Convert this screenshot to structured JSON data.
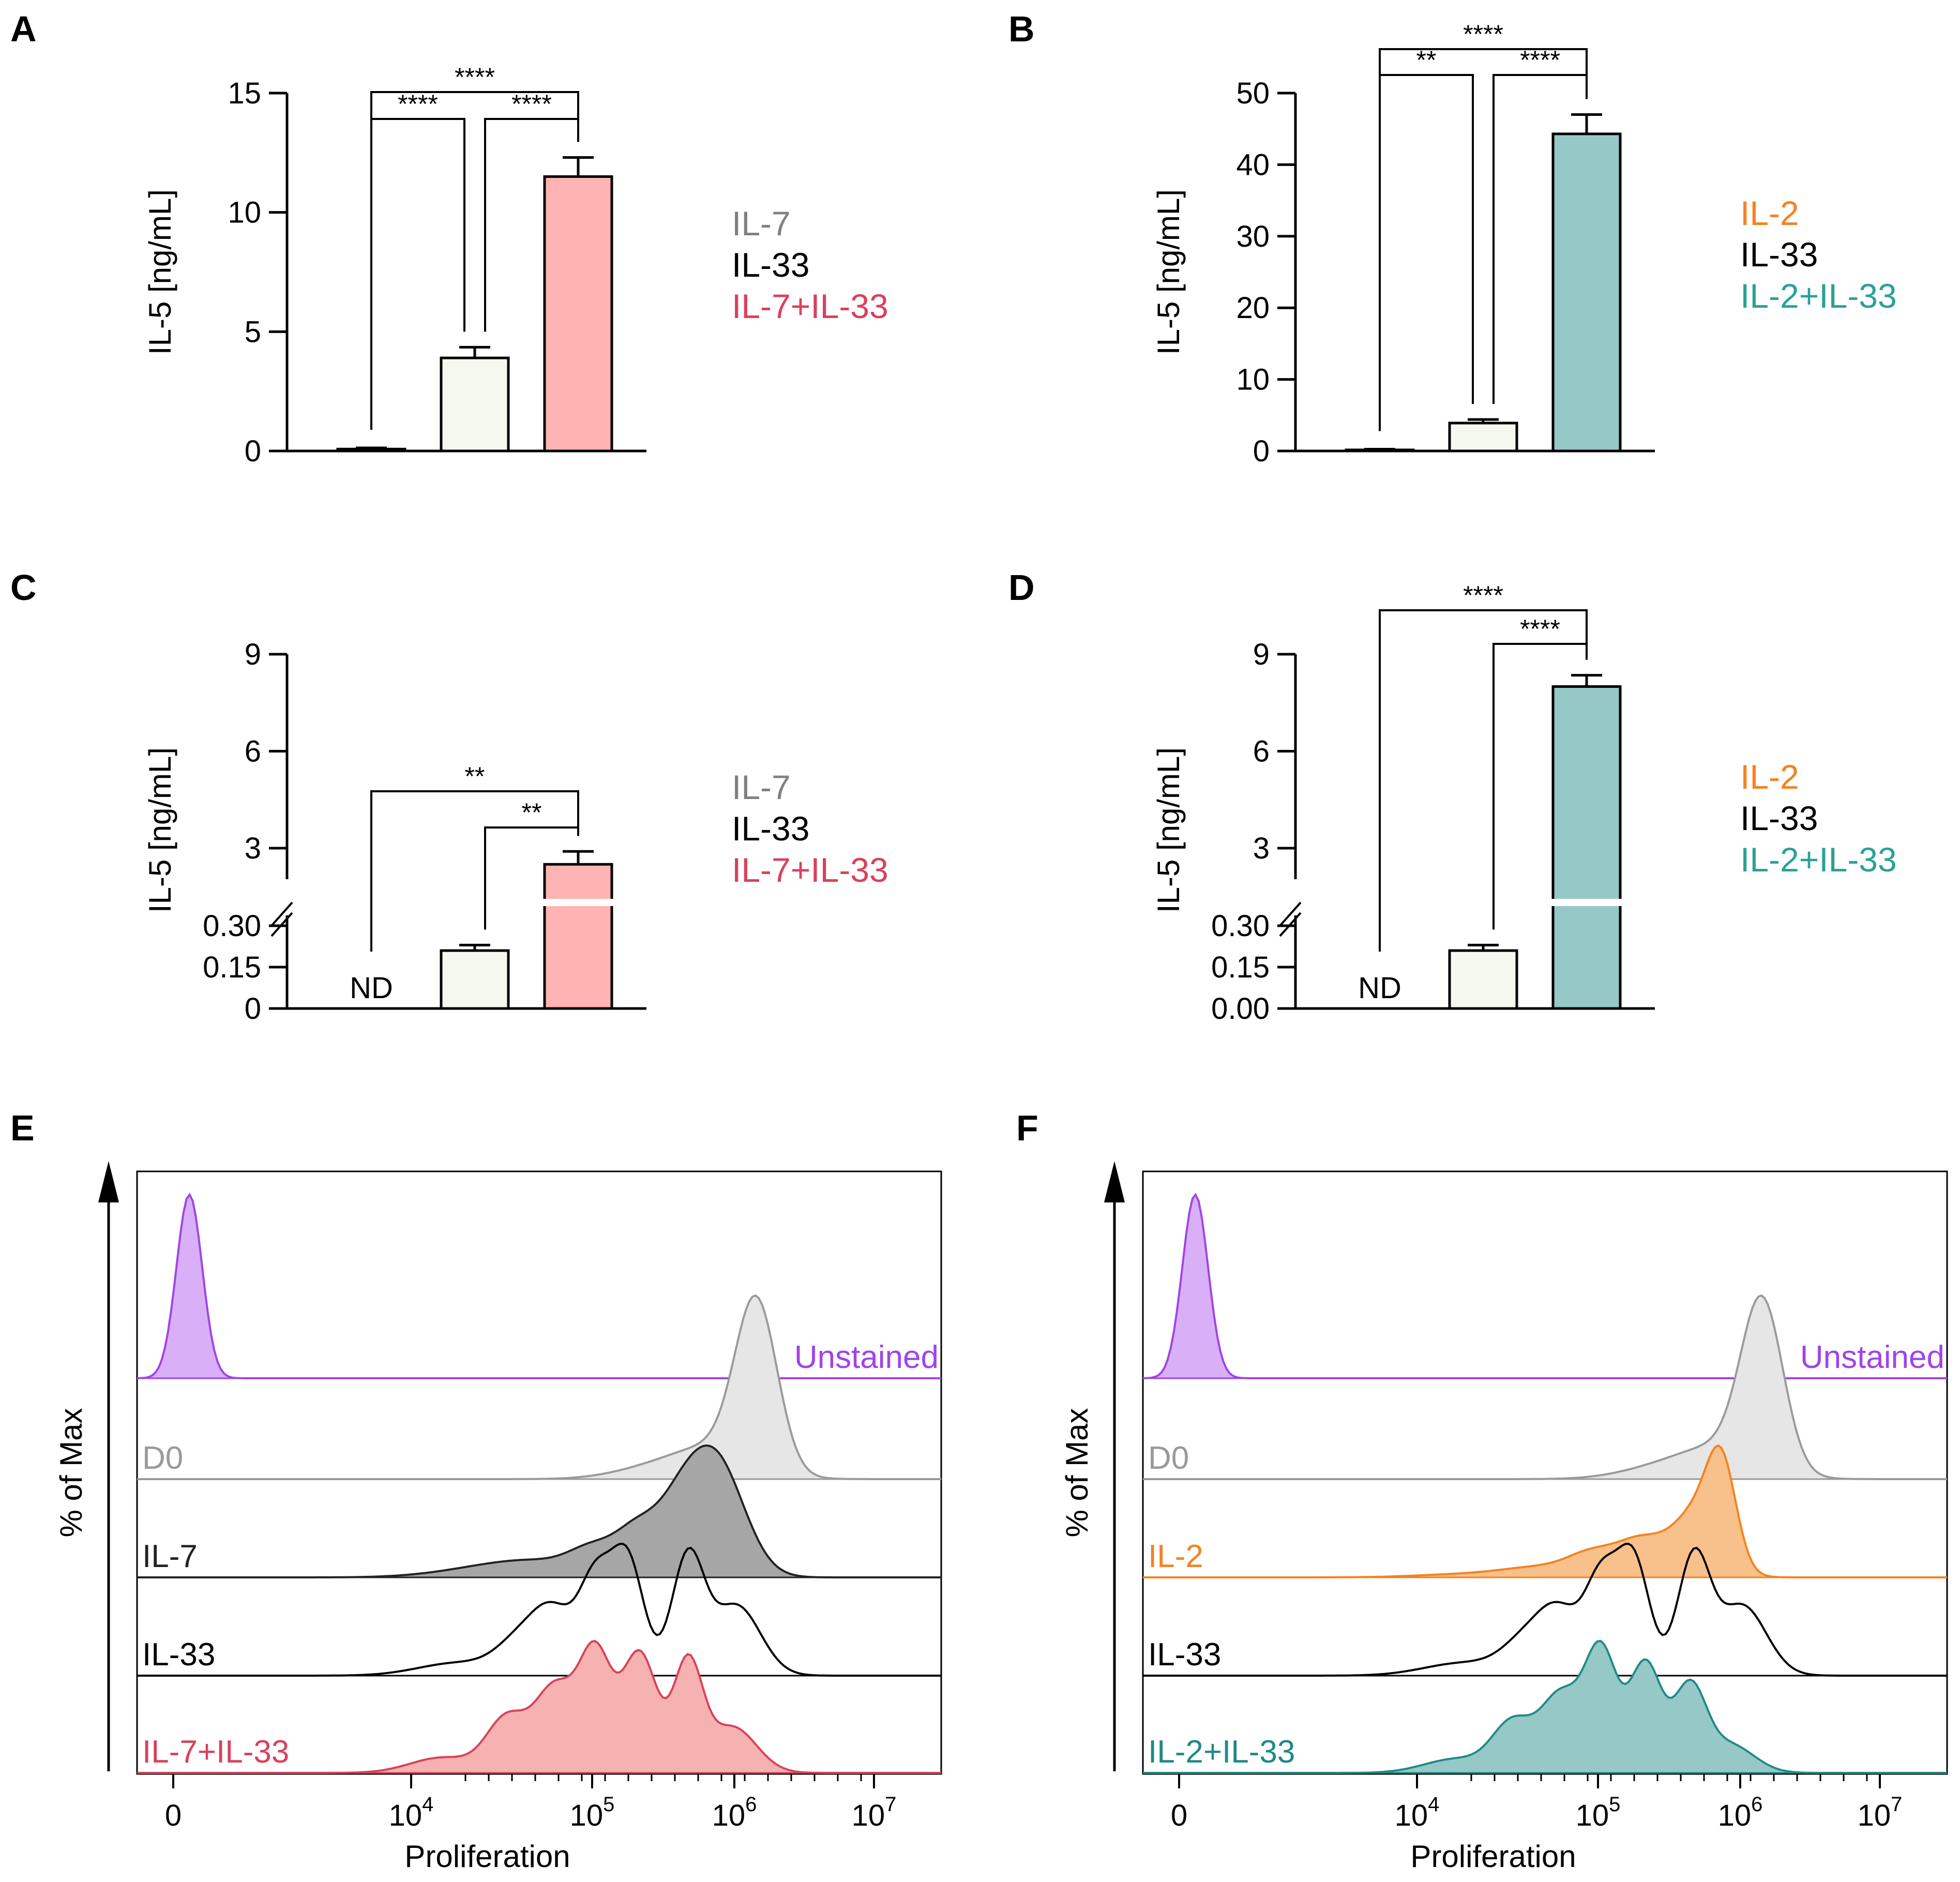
{
  "colors": {
    "IL-7": "#808080",
    "IL-33": "#000000",
    "IL-7+IL-33": "#d9415a",
    "IL-2": "#f58220",
    "IL-2+IL-33": "#2aa198",
    "IL-7+IL-33_fill": "#ffb3b3",
    "IL-2+IL-33_fill": "#96c8c8",
    "IL-33_fill": "#f4f8ef",
    "Unstained": "#a044e8",
    "D0": "#9a9a9a"
  },
  "chart_data": [
    {
      "panel": "A",
      "type": "bar",
      "ylabel": "IL-5 [ng/mL]",
      "ylim": [
        0,
        15
      ],
      "yticks": [
        "0",
        "5",
        "10",
        "15"
      ],
      "categories": [
        "IL-7",
        "IL-33",
        "IL-7+IL-33"
      ],
      "values": [
        0.08,
        3.9,
        11.5
      ],
      "errors": [
        0.05,
        0.45,
        0.8
      ],
      "legend": [
        {
          "label": "IL-7",
          "color": "#808080"
        },
        {
          "label": "IL-33",
          "color": "#000000"
        },
        {
          "label": "IL-7+IL-33",
          "color": "#d9415a"
        }
      ],
      "comparisons": [
        {
          "from": 0,
          "to": 1,
          "label": "****"
        },
        {
          "from": 1,
          "to": 2,
          "label": "****"
        },
        {
          "from": 0,
          "to": 2,
          "label": "****"
        }
      ]
    },
    {
      "panel": "B",
      "type": "bar",
      "ylabel": "IL-5 [ng/mL]",
      "ylim": [
        0,
        50
      ],
      "yticks": [
        "0",
        "10",
        "20",
        "30",
        "40",
        "50"
      ],
      "categories": [
        "IL-2",
        "IL-33",
        "IL-2+IL-33"
      ],
      "values": [
        0.15,
        3.9,
        44.3
      ],
      "errors": [
        0.1,
        0.5,
        2.7
      ],
      "legend": [
        {
          "label": "IL-2",
          "color": "#f58220"
        },
        {
          "label": "IL-33",
          "color": "#000000"
        },
        {
          "label": "IL-2+IL-33",
          "color": "#2aa198"
        }
      ],
      "comparisons": [
        {
          "from": 0,
          "to": 1,
          "label": "**"
        },
        {
          "from": 1,
          "to": 2,
          "label": "****"
        },
        {
          "from": 0,
          "to": 2,
          "label": "****"
        }
      ]
    },
    {
      "panel": "C",
      "type": "bar",
      "ylabel": "IL-5 [ng/mL]",
      "ylim": [
        0,
        9
      ],
      "axis_break": [
        0.3,
        3
      ],
      "yticks": [
        "0",
        "0.15",
        "0.30",
        "3",
        "6",
        "9"
      ],
      "categories": [
        "IL-7",
        "IL-33",
        "IL-7+IL-33"
      ],
      "values": [
        null,
        0.21,
        2.5
      ],
      "errors": [
        null,
        0.02,
        0.4
      ],
      "not_detected": "ND",
      "legend": [
        {
          "label": "IL-7",
          "color": "#808080"
        },
        {
          "label": "IL-33",
          "color": "#000000"
        },
        {
          "label": "IL-7+IL-33",
          "color": "#d9415a"
        }
      ],
      "comparisons": [
        {
          "from": 1,
          "to": 2,
          "label": "**"
        },
        {
          "from": 0,
          "to": 2,
          "label": "**"
        }
      ]
    },
    {
      "panel": "D",
      "type": "bar",
      "ylabel": "IL-5 [ng/mL]",
      "ylim": [
        0,
        9
      ],
      "axis_break": [
        0.3,
        3
      ],
      "yticks": [
        "0.00",
        "0.15",
        "0.30",
        "3",
        "6",
        "9"
      ],
      "categories": [
        "IL-2",
        "IL-33",
        "IL-2+IL-33"
      ],
      "values": [
        null,
        0.21,
        8.0
      ],
      "errors": [
        null,
        0.02,
        0.35
      ],
      "not_detected": "ND",
      "legend": [
        {
          "label": "IL-2",
          "color": "#f58220"
        },
        {
          "label": "IL-33",
          "color": "#000000"
        },
        {
          "label": "IL-2+IL-33",
          "color": "#2aa198"
        }
      ],
      "comparisons": [
        {
          "from": 1,
          "to": 2,
          "label": "****"
        },
        {
          "from": 0,
          "to": 2,
          "label": "****"
        }
      ]
    },
    {
      "panel": "E",
      "type": "area",
      "xlabel": "Proliferation",
      "ylabel": "% of Max",
      "xticks": [
        {
          "base": "0",
          "exp": ""
        },
        {
          "base": "10",
          "exp": "4"
        },
        {
          "base": "10",
          "exp": "5"
        },
        {
          "base": "10",
          "exp": "6"
        },
        {
          "base": "10",
          "exp": "7"
        }
      ],
      "series": [
        {
          "name": "Unstained",
          "color": "#a044e8",
          "fill": "#d9b0f7",
          "label_side": "right",
          "peaks": [
            [
              0.065,
              1.0,
              0.016
            ]
          ]
        },
        {
          "name": "D0",
          "color": "#9a9a9a",
          "fill": "#e6e6e6",
          "label_side": "left",
          "peaks": [
            [
              0.77,
              1.0,
              0.026
            ],
            [
              0.72,
              0.18,
              0.05
            ],
            [
              0.64,
              0.06,
              0.05
            ]
          ]
        },
        {
          "name": "IL-7",
          "color": "#222222",
          "fill": "#a6a6a6",
          "label_side": "left",
          "peaks": [
            [
              0.72,
              0.95,
              0.035
            ],
            [
              0.67,
              0.45,
              0.03
            ],
            [
              0.62,
              0.3,
              0.025
            ],
            [
              0.57,
              0.2,
              0.03
            ],
            [
              0.5,
              0.12,
              0.06
            ],
            [
              0.42,
              0.05,
              0.06
            ]
          ]
        },
        {
          "name": "IL-33",
          "color": "#000000",
          "fill": "none",
          "label_side": "left",
          "peaks": [
            [
              0.61,
              0.9,
              0.02
            ],
            [
              0.685,
              0.92,
              0.02
            ],
            [
              0.57,
              0.72,
              0.02
            ],
            [
              0.745,
              0.55,
              0.03
            ],
            [
              0.52,
              0.42,
              0.025
            ],
            [
              0.48,
              0.28,
              0.03
            ],
            [
              0.4,
              0.1,
              0.05
            ]
          ]
        },
        {
          "name": "IL-7+IL-33",
          "color": "#d9415a",
          "fill": "#f6b1b1",
          "label_side": "left",
          "peaks": [
            [
              0.57,
              0.75,
              0.02
            ],
            [
              0.625,
              0.78,
              0.022
            ],
            [
              0.685,
              0.7,
              0.018
            ],
            [
              0.52,
              0.55,
              0.025
            ],
            [
              0.46,
              0.35,
              0.025
            ],
            [
              0.74,
              0.3,
              0.03
            ],
            [
              0.38,
              0.1,
              0.04
            ]
          ]
        }
      ]
    },
    {
      "panel": "F",
      "type": "area",
      "xlabel": "Proliferation",
      "ylabel": "% of Max",
      "xticks": [
        {
          "base": "0",
          "exp": ""
        },
        {
          "base": "10",
          "exp": "4"
        },
        {
          "base": "10",
          "exp": "5"
        },
        {
          "base": "10",
          "exp": "6"
        },
        {
          "base": "10",
          "exp": "7"
        }
      ],
      "series": [
        {
          "name": "Unstained",
          "color": "#a044e8",
          "fill": "#d9b0f7",
          "label_side": "right",
          "peaks": [
            [
              0.065,
              1.0,
              0.016
            ]
          ]
        },
        {
          "name": "D0",
          "color": "#9a9a9a",
          "fill": "#e6e6e6",
          "label_side": "left",
          "peaks": [
            [
              0.77,
              1.0,
              0.026
            ],
            [
              0.72,
              0.18,
              0.05
            ],
            [
              0.64,
              0.06,
              0.05
            ]
          ]
        },
        {
          "name": "IL-2",
          "color": "#f58220",
          "fill": "#f8c08a",
          "label_side": "left",
          "peaks": [
            [
              0.72,
              0.9,
              0.018
            ],
            [
              0.69,
              0.65,
              0.03
            ],
            [
              0.62,
              0.35,
              0.03
            ],
            [
              0.56,
              0.2,
              0.03
            ],
            [
              0.5,
              0.1,
              0.05
            ],
            [
              0.4,
              0.03,
              0.06
            ]
          ]
        },
        {
          "name": "IL-33",
          "color": "#000000",
          "fill": "none",
          "label_side": "left",
          "peaks": [
            [
              0.61,
              0.9,
              0.02
            ],
            [
              0.685,
              0.92,
              0.02
            ],
            [
              0.57,
              0.72,
              0.02
            ],
            [
              0.745,
              0.55,
              0.03
            ],
            [
              0.52,
              0.42,
              0.025
            ],
            [
              0.48,
              0.28,
              0.03
            ],
            [
              0.4,
              0.1,
              0.05
            ]
          ]
        },
        {
          "name": "IL-2+IL-33",
          "color": "#1f8a86",
          "fill": "#96c8c8",
          "label_side": "left",
          "peaks": [
            [
              0.57,
              0.85,
              0.02
            ],
            [
              0.625,
              0.78,
              0.02
            ],
            [
              0.68,
              0.6,
              0.02
            ],
            [
              0.52,
              0.55,
              0.025
            ],
            [
              0.46,
              0.35,
              0.025
            ],
            [
              0.73,
              0.2,
              0.03
            ],
            [
              0.39,
              0.1,
              0.04
            ]
          ]
        }
      ]
    }
  ]
}
